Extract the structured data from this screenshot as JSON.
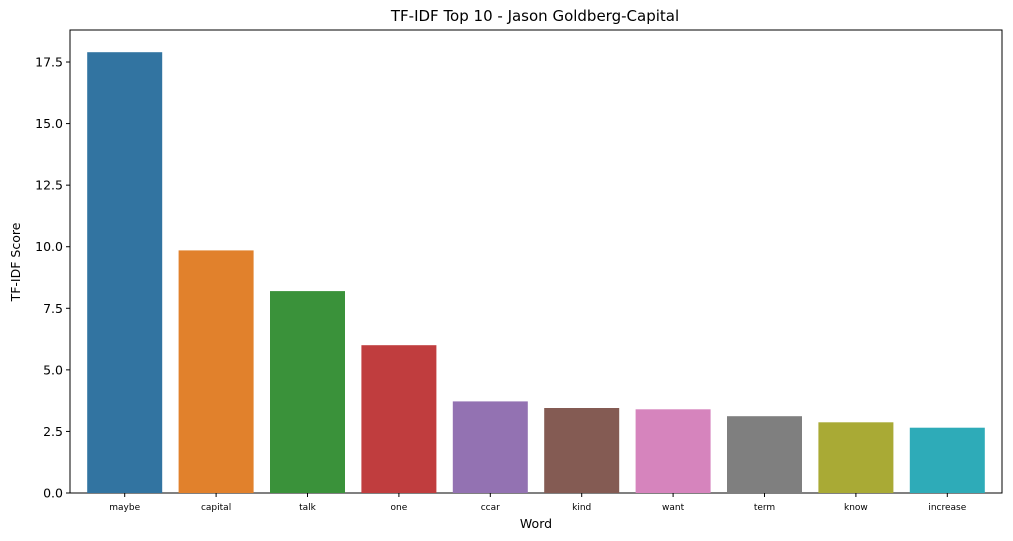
{
  "chart_data": {
    "type": "bar",
    "title": "TF-IDF Top 10 - Jason Goldberg-Capital",
    "xlabel": "Word",
    "ylabel": "TF-IDF Score",
    "categories": [
      "maybe",
      "capital",
      "talk",
      "one",
      "ccar",
      "kind",
      "want",
      "term",
      "know",
      "increase"
    ],
    "values": [
      17.9,
      9.85,
      8.2,
      6.0,
      3.72,
      3.45,
      3.4,
      3.12,
      2.87,
      2.65
    ],
    "colors": [
      "#3274a1",
      "#e1812c",
      "#3a923a",
      "#c03d3e",
      "#9372b2",
      "#845b53",
      "#d684bd",
      "#7f7f7f",
      "#a9aa35",
      "#2eabb8"
    ],
    "yticks": [
      "0.0",
      "2.5",
      "5.0",
      "7.5",
      "10.0",
      "12.5",
      "15.0",
      "17.5"
    ],
    "ylim": [
      0,
      18.8
    ],
    "grid": false,
    "legend": "none"
  }
}
